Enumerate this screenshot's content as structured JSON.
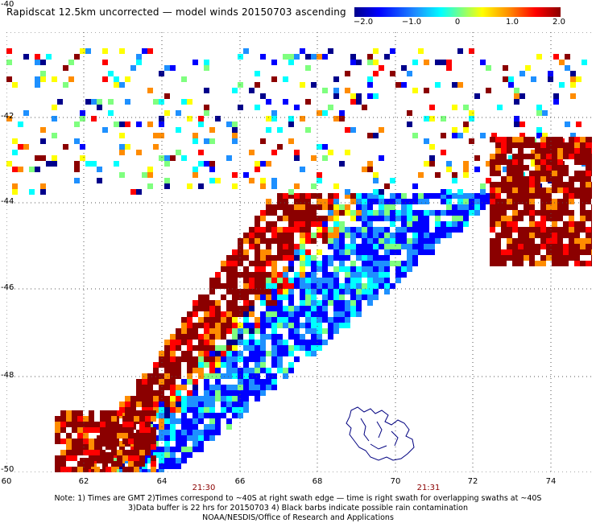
{
  "header": {
    "title": "Rapidscat 12.5km uncorrected — model winds 20150703 ascending"
  },
  "colorbar": {
    "ticks": [
      "−2.0",
      "−1.0",
      "0",
      "1.0",
      "2.0"
    ],
    "colors": [
      "#00008b",
      "#0000ff",
      "#1e90ff",
      "#00ffff",
      "#7fff7f",
      "#ffff00",
      "#ff8c00",
      "#ff0000",
      "#8b0000"
    ]
  },
  "axes": {
    "lat_labels": [
      "-40",
      "-42",
      "-44",
      "-46",
      "-48",
      "-50"
    ],
    "lon_labels": [
      "60",
      "62",
      "64",
      "66",
      "68",
      "70",
      "72",
      "74"
    ]
  },
  "times": [
    "21:30",
    "21:31"
  ],
  "notes": {
    "line1": "Note: 1) Times are GMT 2)Times correspond to ~40S at right swath edge — time is right swath for overlapping swaths at ~40S",
    "line2": "3)Data buffer is 22 hrs for 20150703 4) Black barbs indicate possible rain contamination",
    "line3": "NOAA/NESDIS/Office of Research and Applications"
  },
  "map": {
    "grid": "dotted",
    "land_outline": "island"
  }
}
